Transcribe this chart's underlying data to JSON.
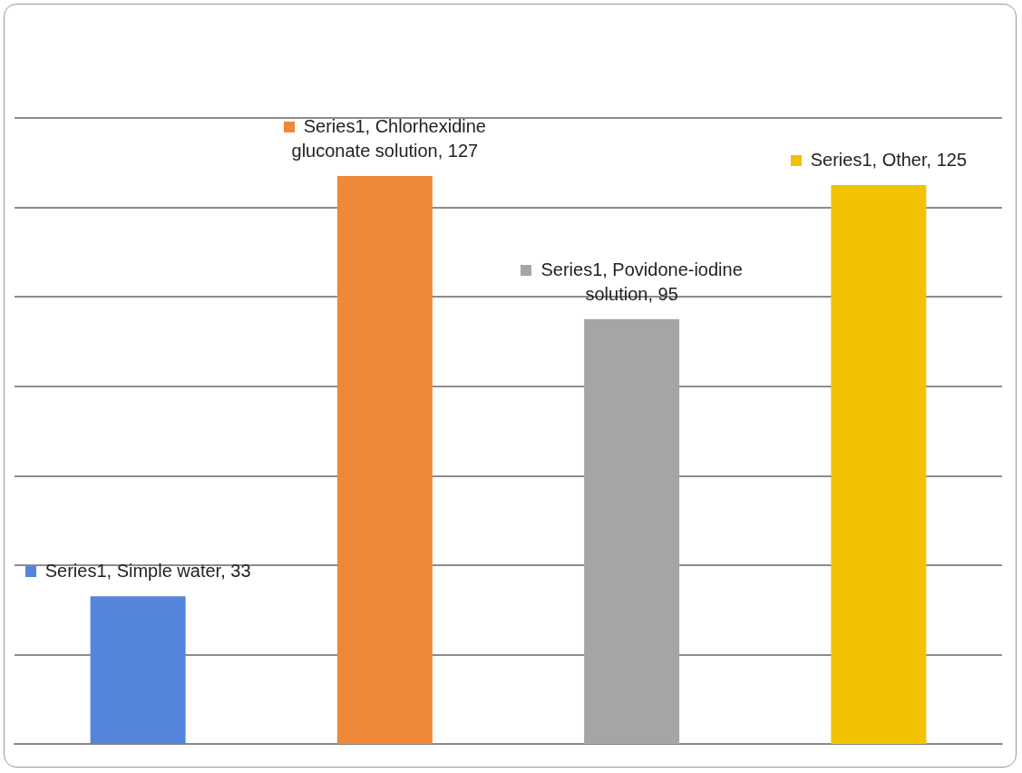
{
  "chart_data": {
    "type": "bar",
    "categories": [
      null,
      null,
      null,
      null
    ],
    "series": [
      {
        "values": [
          33,
          127,
          95,
          125
        ],
        "colors": [
          "#5584dc",
          "#f0883a",
          "#a5a5a5",
          "#f2c100"
        ],
        "value_labels": [
          "Series1, Simple water, 33",
          "Series1, Chlorhexidine gluconate solution, 127",
          "Series1, Povidone-iodine solution, 95",
          "Series1, Other, 125"
        ]
      }
    ],
    "ylim": [
      0,
      140
    ],
    "yticks": [
      0,
      20,
      40,
      60,
      80,
      100,
      120,
      140
    ],
    "grid": "y",
    "tick_labels": false
  }
}
